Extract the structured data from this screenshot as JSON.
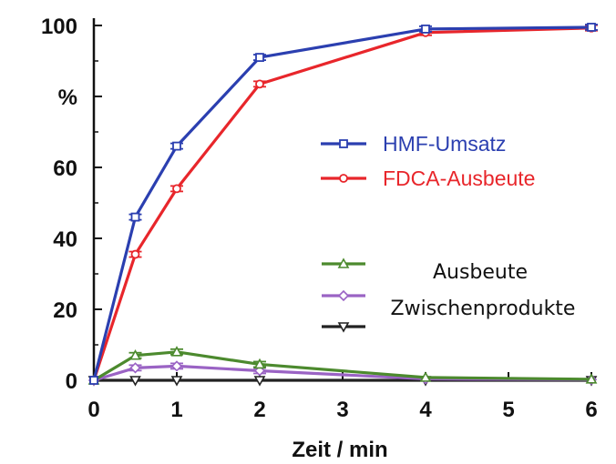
{
  "chart_data": {
    "type": "line",
    "x": [
      0,
      0.5,
      1,
      2,
      4,
      6
    ],
    "xlim": [
      0,
      6
    ],
    "ylim": [
      0,
      100
    ],
    "xticks": [
      0,
      1,
      2,
      3,
      4,
      5,
      6
    ],
    "yticks": [
      0,
      20,
      40,
      60,
      80,
      100
    ],
    "ytick_labels": [
      "0",
      "20",
      "40",
      "60",
      "%",
      "100"
    ],
    "xlabel": "Zeit / min",
    "ylabel": "",
    "legend_placement": "right",
    "series": [
      {
        "name": "HMF-Umsatz",
        "color": "#2b3fb0",
        "marker": "square",
        "values": [
          0,
          46,
          66,
          91,
          99,
          99.5
        ]
      },
      {
        "name": "FDCA-Ausbeute",
        "color": "#e8262b",
        "marker": "circle",
        "values": [
          0,
          35.5,
          54,
          83.5,
          98,
          99.3
        ]
      },
      {
        "name": "",
        "color": "#4c8a2e",
        "marker": "triangle-up",
        "values": [
          0,
          7,
          8,
          4.5,
          0.8,
          0.3
        ]
      },
      {
        "name": "",
        "color": "#9a63c4",
        "marker": "diamond",
        "values": [
          0,
          3.5,
          4,
          2.7,
          0.4,
          0.2
        ]
      },
      {
        "name": "",
        "color": "#222222",
        "marker": "triangle-down",
        "values": [
          0,
          0,
          0,
          0,
          0,
          0
        ]
      }
    ],
    "legend_group_label": [
      "Ausbeute",
      "Zwischenprodukte"
    ]
  }
}
